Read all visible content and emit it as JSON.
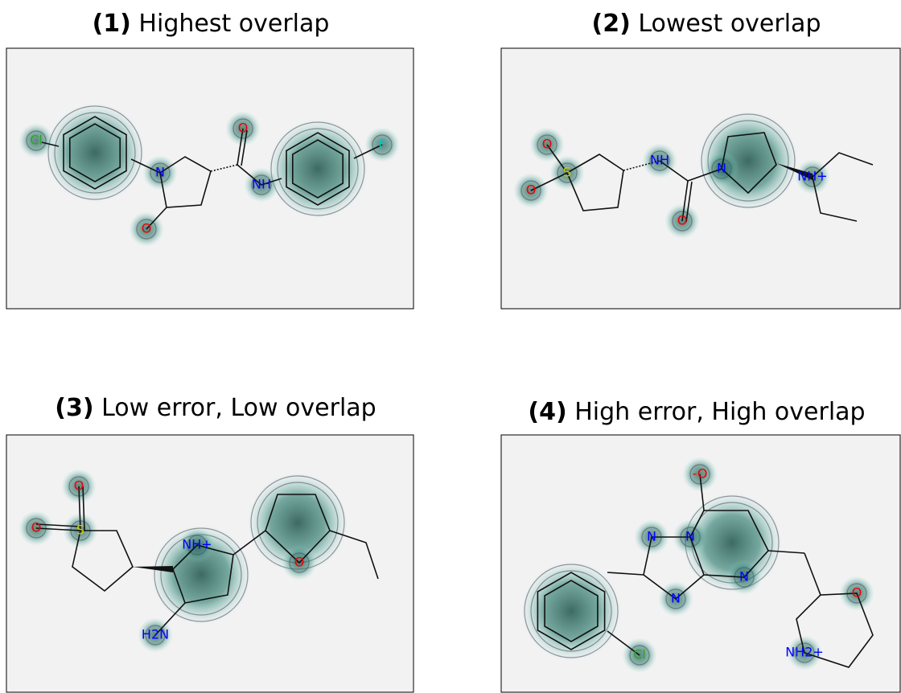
{
  "panels": [
    {
      "number": "(1)",
      "title": "Highest overlap",
      "atoms": [
        "Cl",
        "N",
        "O",
        "O",
        "NH",
        "F"
      ]
    },
    {
      "number": "(2)",
      "title": "Lowest overlap",
      "atoms": [
        "O",
        "S",
        "O",
        "NH",
        "N",
        "O",
        "NH+"
      ]
    },
    {
      "number": "(3)",
      "title": "Low error, Low overlap",
      "atoms": [
        "O",
        "S",
        "O",
        "NH+",
        "H2N",
        "O"
      ]
    },
    {
      "number": "(4)",
      "title": "High error, High overlap",
      "atoms": [
        "-O",
        "N",
        "N",
        "N",
        "N",
        "Cl",
        "O",
        "NH2+"
      ]
    }
  ]
}
